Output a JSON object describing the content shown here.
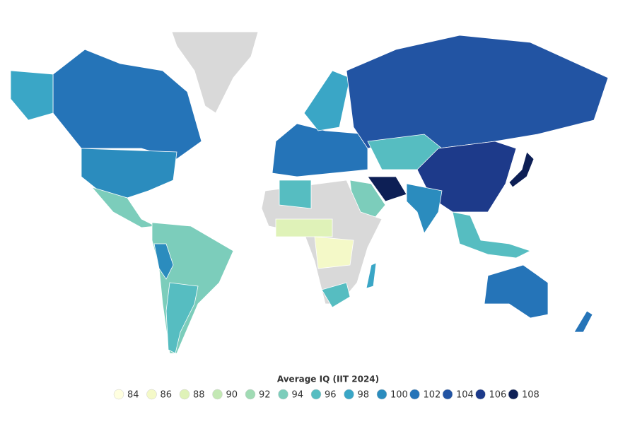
{
  "legend": {
    "title": "Average IQ (IIT 2024)",
    "items": [
      {
        "value": 84,
        "color": "#ffffe0"
      },
      {
        "value": 86,
        "color": "#f4f9c8"
      },
      {
        "value": 88,
        "color": "#dff2b8"
      },
      {
        "value": 90,
        "color": "#c3e8b4"
      },
      {
        "value": 92,
        "color": "#a0dbb4"
      },
      {
        "value": 94,
        "color": "#7ccdbb"
      },
      {
        "value": 96,
        "color": "#56bdc1"
      },
      {
        "value": 98,
        "color": "#3aa6c6"
      },
      {
        "value": 100,
        "color": "#2b8cbe"
      },
      {
        "value": 102,
        "color": "#2574b8"
      },
      {
        "value": 104,
        "color": "#2254a3"
      },
      {
        "value": 106,
        "color": "#1d3a8a"
      },
      {
        "value": 108,
        "color": "#0d1f55"
      }
    ]
  }
}
